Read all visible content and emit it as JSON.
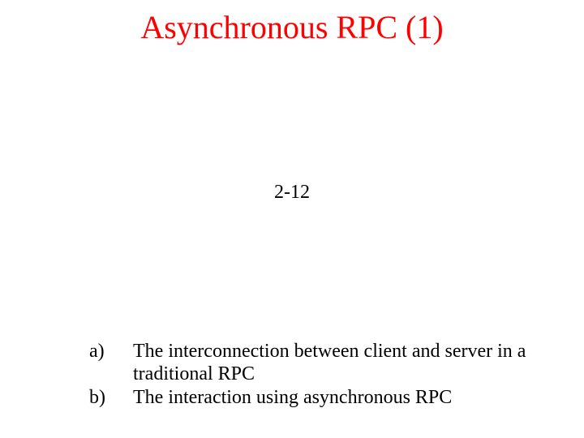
{
  "slide": {
    "title": "Asynchronous RPC (1)",
    "title_color": "#ff0000",
    "figure_ref": "2-12",
    "body_color": "#000000",
    "background_color": "#ffffff",
    "title_fontsize": 40,
    "body_fontsize": 24,
    "font_family": "Times New Roman",
    "bullets": [
      {
        "label": "a)",
        "text": "The interconnection between client and server in a traditional RPC"
      },
      {
        "label": "b)",
        "text": "The interaction using asynchronous RPC"
      }
    ]
  }
}
